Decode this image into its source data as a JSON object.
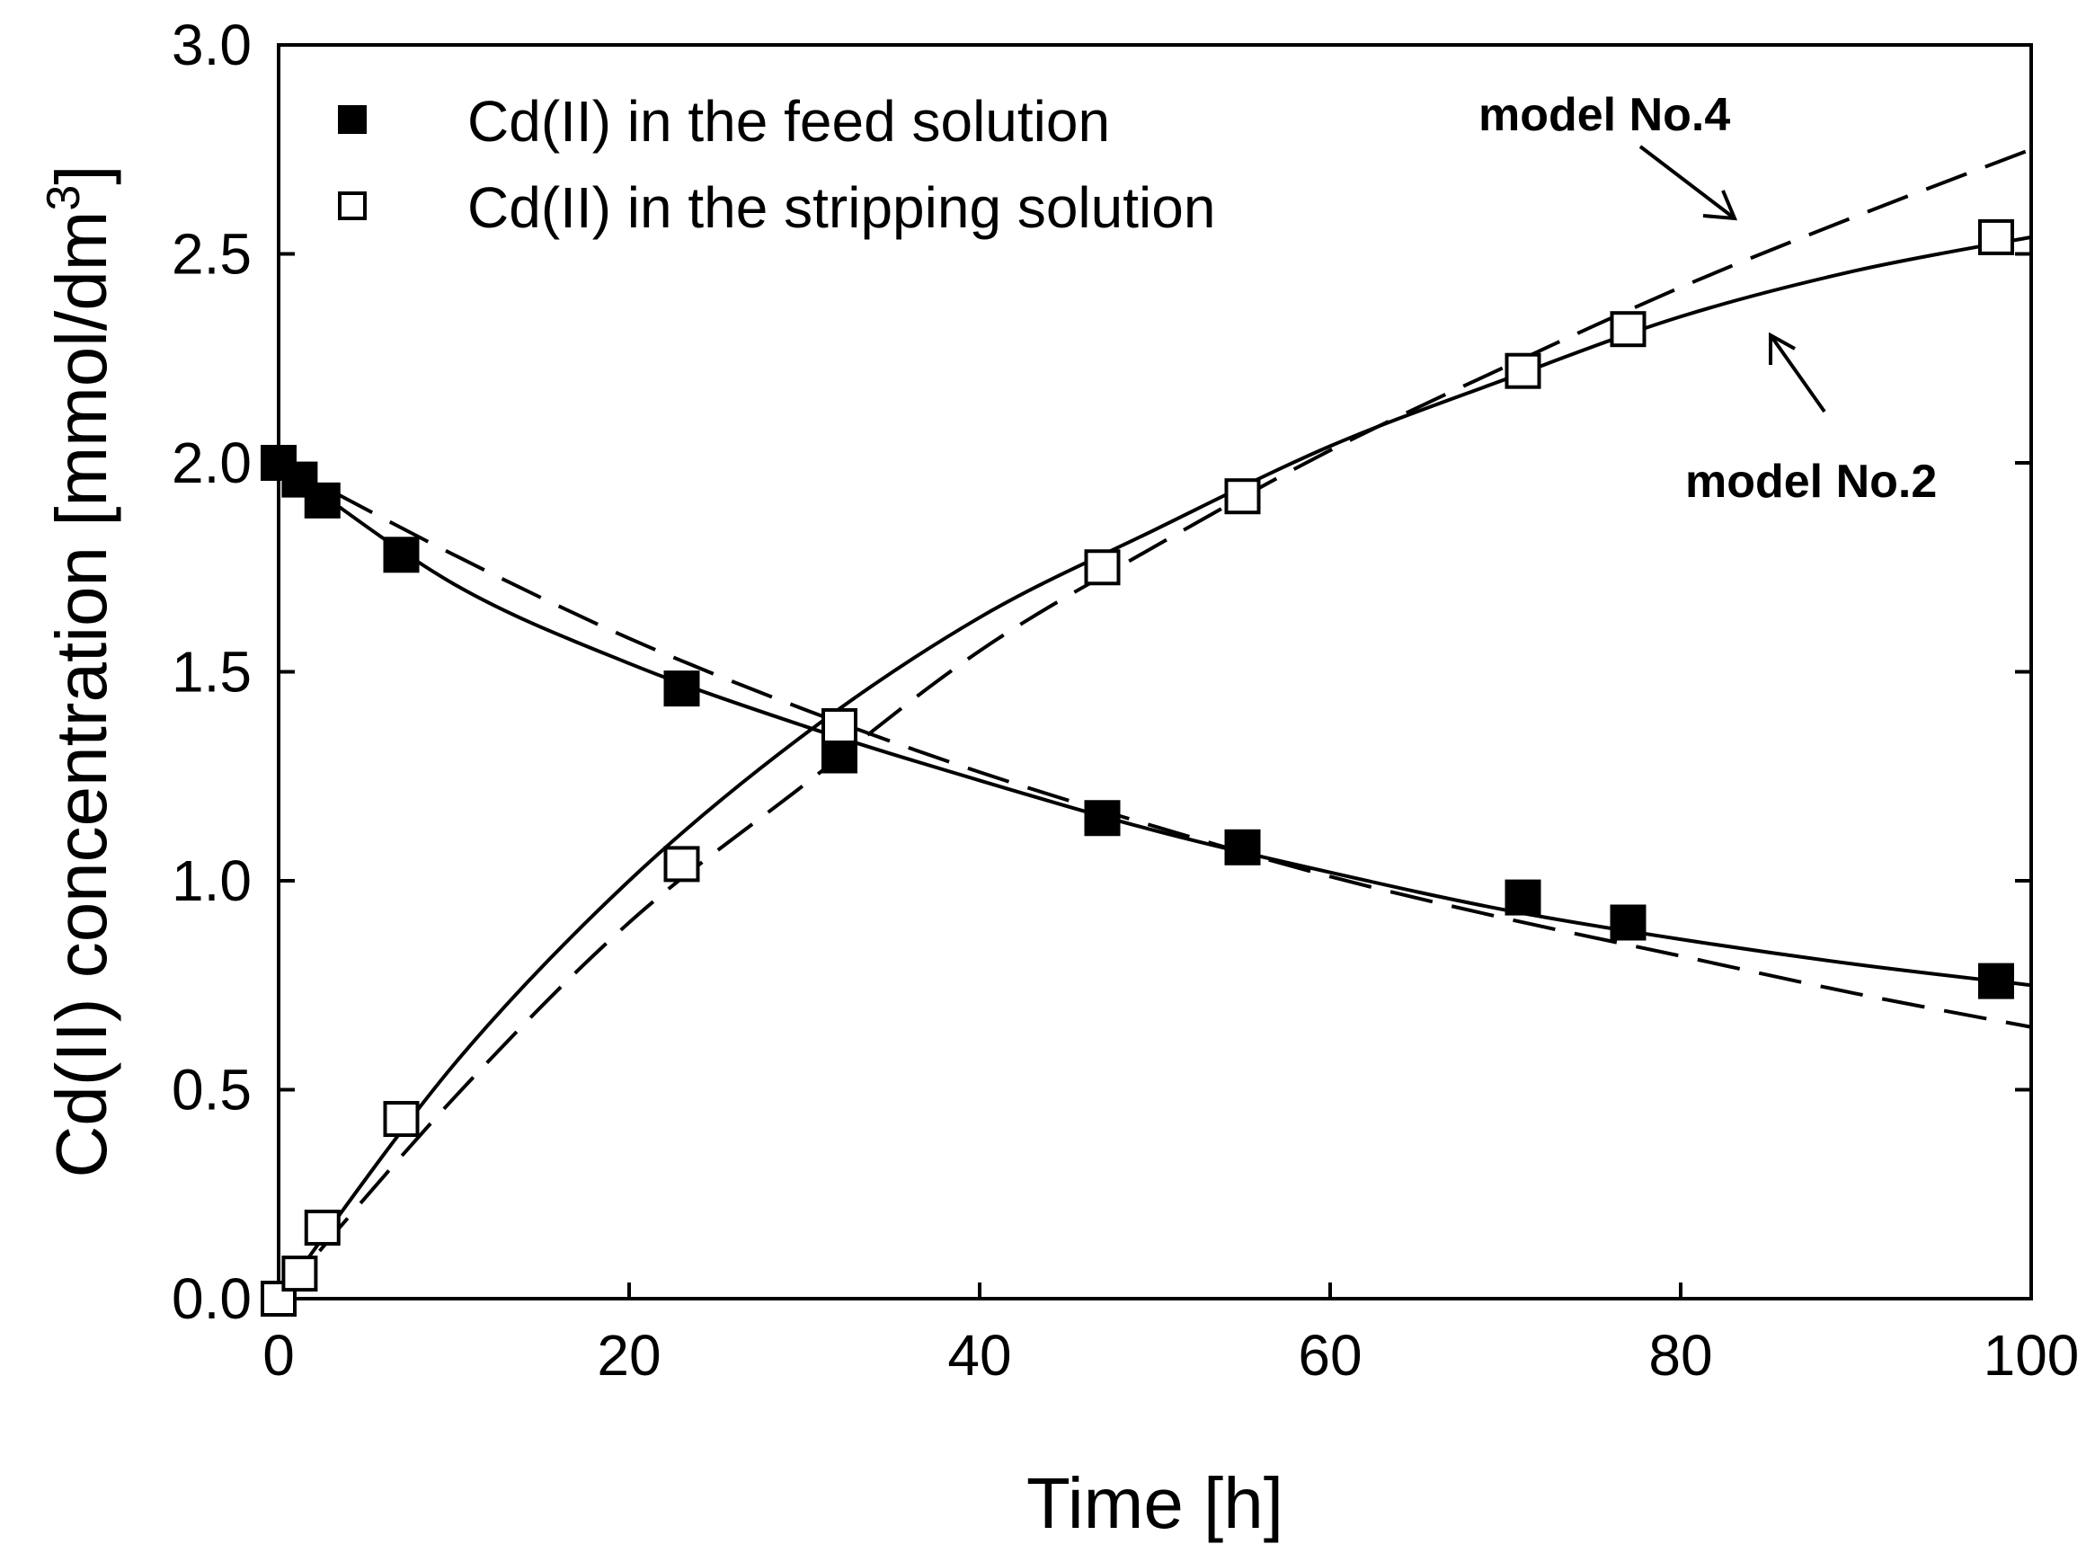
{
  "chart_data": {
    "type": "scatter",
    "title": "",
    "xlabel": "Time [h]",
    "ylabel": "Cd(II) concentration [mmol/dm",
    "ylabel_sup": "3",
    "ylabel_close": "]",
    "xlim": [
      0,
      100
    ],
    "ylim": [
      0,
      3
    ],
    "xticks": [
      "0",
      "20",
      "40",
      "60",
      "80",
      "100"
    ],
    "yticks": [
      "0.0",
      "0.5",
      "1.0",
      "1.5",
      "2.0",
      "2.5",
      "3.0"
    ],
    "xtick_values": [
      0,
      20,
      40,
      60,
      80,
      100
    ],
    "ytick_values": [
      0,
      0.5,
      1,
      1.5,
      2,
      2.5,
      3
    ],
    "legend_position": "top-left",
    "series": [
      {
        "name": "Cd(II) in the feed solution",
        "marker": "filled-square",
        "x": [
          0,
          1.2,
          2.5,
          7,
          23,
          32,
          47,
          55,
          71,
          77,
          98
        ],
        "y": [
          2.0,
          1.96,
          1.91,
          1.78,
          1.46,
          1.3,
          1.15,
          1.08,
          0.96,
          0.9,
          0.76
        ]
      },
      {
        "name": "Cd(II) in the stripping solution",
        "marker": "open-square",
        "x": [
          0,
          1.2,
          2.5,
          7,
          23,
          32,
          47,
          55,
          71,
          77,
          98
        ],
        "y": [
          0.0,
          0.06,
          0.17,
          0.43,
          1.04,
          1.37,
          1.75,
          1.92,
          2.22,
          2.32,
          2.54
        ]
      }
    ],
    "models": [
      {
        "name": "model No.2",
        "style": "solid",
        "feed_curve": {
          "x": [
            0,
            10,
            20,
            30,
            40,
            50,
            60,
            70,
            80,
            90,
            100
          ],
          "y": [
            2.0,
            1.71,
            1.52,
            1.37,
            1.24,
            1.12,
            1.02,
            0.93,
            0.86,
            0.8,
            0.75
          ]
        },
        "strip_curve": {
          "x": [
            0,
            10,
            20,
            30,
            40,
            50,
            60,
            70,
            80,
            90,
            100
          ],
          "y": [
            0.0,
            0.56,
            1.0,
            1.35,
            1.63,
            1.84,
            2.04,
            2.2,
            2.35,
            2.46,
            2.54
          ]
        }
      },
      {
        "name": "model No.4",
        "style": "dashed",
        "feed_curve": {
          "x": [
            0,
            10,
            20,
            30,
            40,
            50,
            60,
            70,
            80,
            90,
            100
          ],
          "y": [
            2.0,
            1.78,
            1.58,
            1.41,
            1.26,
            1.13,
            1.01,
            0.91,
            0.82,
            0.73,
            0.65
          ]
        },
        "strip_curve": {
          "x": [
            0,
            10,
            20,
            30,
            40,
            50,
            60,
            70,
            80,
            90,
            100
          ],
          "y": [
            0.0,
            0.48,
            0.9,
            1.23,
            1.55,
            1.8,
            2.03,
            2.23,
            2.42,
            2.59,
            2.75
          ]
        }
      }
    ],
    "annotations": [
      {
        "text": "model No.4",
        "points_to": {
          "x": 84,
          "y": 2.58
        },
        "text_anchor_data": {
          "x": 83,
          "y": 2.85
        }
      },
      {
        "text": "model No.2",
        "points_to": {
          "x": 85,
          "y": 2.37
        },
        "text_anchor_data": {
          "x": 85,
          "y": 1.95
        }
      }
    ]
  }
}
